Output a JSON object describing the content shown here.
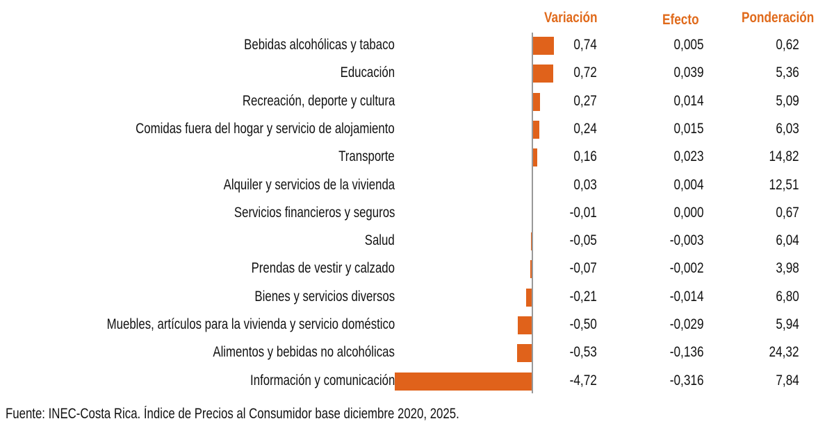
{
  "chart_data": {
    "type": "bar",
    "orientation": "horizontal",
    "headers": {
      "variacion": "Variación",
      "efecto": "Efecto",
      "ponderacion": "Ponderación"
    },
    "rows": [
      {
        "label": "Bebidas alcohólicas y tabaco",
        "variacion": 0.74,
        "variacion_text": "0,74",
        "efecto": "0,005",
        "ponderacion": "0,62"
      },
      {
        "label": "Educación",
        "variacion": 0.72,
        "variacion_text": "0,72",
        "efecto": "0,039",
        "ponderacion": "5,36"
      },
      {
        "label": "Recreación, deporte y cultura",
        "variacion": 0.27,
        "variacion_text": "0,27",
        "efecto": "0,014",
        "ponderacion": "5,09"
      },
      {
        "label": "Comidas fuera del hogar y servicio de alojamiento",
        "variacion": 0.24,
        "variacion_text": "0,24",
        "efecto": "0,015",
        "ponderacion": "6,03"
      },
      {
        "label": "Transporte",
        "variacion": 0.16,
        "variacion_text": "0,16",
        "efecto": "0,023",
        "ponderacion": "14,82"
      },
      {
        "label": "Alquiler y servicios de la vivienda",
        "variacion": 0.03,
        "variacion_text": "0,03",
        "efecto": "0,004",
        "ponderacion": "12,51"
      },
      {
        "label": "Servicios financieros y seguros",
        "variacion": -0.01,
        "variacion_text": "-0,01",
        "efecto": "0,000",
        "ponderacion": "0,67"
      },
      {
        "label": "Salud",
        "variacion": -0.05,
        "variacion_text": "-0,05",
        "efecto": "-0,003",
        "ponderacion": "6,04"
      },
      {
        "label": "Prendas de vestir y calzado",
        "variacion": -0.07,
        "variacion_text": "-0,07",
        "efecto": "-0,002",
        "ponderacion": "3,98"
      },
      {
        "label": "Bienes y servicios diversos",
        "variacion": -0.21,
        "variacion_text": "-0,21",
        "efecto": "-0,014",
        "ponderacion": "6,80"
      },
      {
        "label": "Muebles, artículos para la vivienda y servicio doméstico",
        "variacion": -0.5,
        "variacion_text": "-0,50",
        "efecto": "-0,029",
        "ponderacion": "5,94"
      },
      {
        "label": "Alimentos y bebidas no alcohólicas",
        "variacion": -0.53,
        "variacion_text": "-0,53",
        "efecto": "-0,136",
        "ponderacion": "24,32"
      },
      {
        "label": "Información y comunicación",
        "variacion": -4.72,
        "variacion_text": "-4,72",
        "efecto": "-0,316",
        "ponderacion": "7,84"
      }
    ],
    "bar_color": "#e0621b",
    "header_color": "#e06a1b",
    "source": "Fuente: INEC-Costa Rica. Índice de Precios al Consumidor base diciembre 2020, 2025."
  }
}
